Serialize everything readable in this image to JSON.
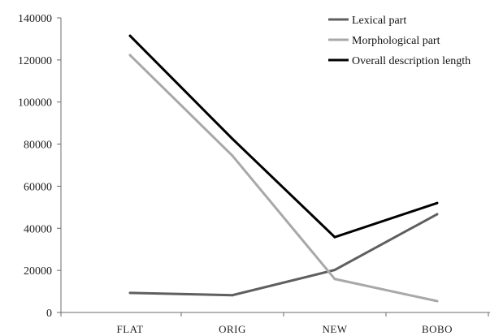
{
  "chart_data": {
    "type": "line",
    "categories": [
      "FLAT",
      "ORIG",
      "NEW",
      "BOBO"
    ],
    "ylim": [
      0,
      140000
    ],
    "yticks": [
      0,
      20000,
      40000,
      60000,
      80000,
      100000,
      120000,
      140000
    ],
    "grid": false,
    "legend_position": "top-right",
    "series": [
      {
        "name": "Lexical part",
        "color": "#5f5f5f",
        "values": [
          9300,
          8200,
          20200,
          46700
        ]
      },
      {
        "name": "Morphological part",
        "color": "#a8a8a8",
        "values": [
          122300,
          74500,
          15900,
          5400
        ]
      },
      {
        "name": "Overall description length",
        "color": "#000000",
        "values": [
          131500,
          82500,
          35800,
          52000
        ]
      }
    ]
  }
}
